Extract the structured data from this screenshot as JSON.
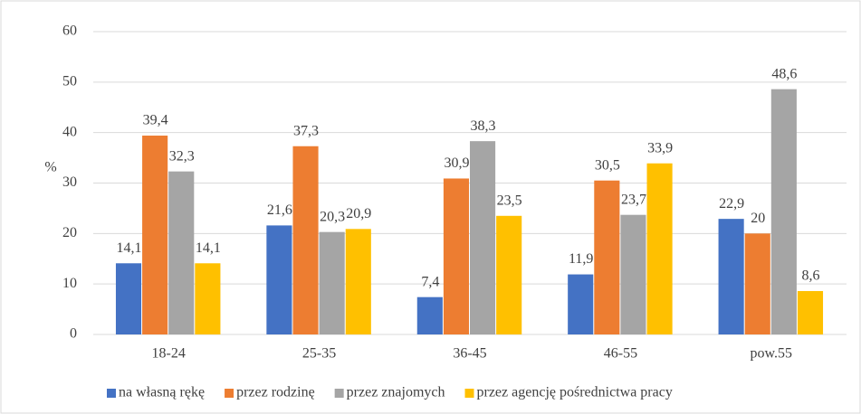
{
  "chart_data": {
    "type": "bar",
    "y_label": "%",
    "categories": [
      "18-24",
      "25-35",
      "36-45",
      "46-55",
      "pow.55"
    ],
    "series": [
      {
        "name": "na własną rękę",
        "color": "#4472c4",
        "values": [
          14.1,
          21.6,
          7.4,
          11.9,
          22.9
        ],
        "value_labels": [
          "14,1",
          "21,6",
          "7,4",
          "11,9",
          "22,9"
        ]
      },
      {
        "name": "przez rodzinę",
        "color": "#ed7d31",
        "values": [
          39.4,
          37.3,
          30.9,
          30.5,
          20
        ],
        "value_labels": [
          "39,4",
          "37,3",
          "30,9",
          "30,5",
          "20"
        ]
      },
      {
        "name": "przez znajomych",
        "color": "#a5a5a5",
        "values": [
          32.3,
          20.3,
          38.3,
          23.7,
          48.6
        ],
        "value_labels": [
          "32,3",
          "20,3",
          "38,3",
          "23,7",
          "48,6"
        ]
      },
      {
        "name": "przez agencję pośrednictwa pracy",
        "color": "#ffc000",
        "values": [
          14.1,
          20.9,
          23.5,
          33.9,
          8.6
        ],
        "value_labels": [
          "14,1",
          "20,9",
          "23,5",
          "33,9",
          "8,6"
        ]
      }
    ],
    "ylim": [
      0,
      60
    ],
    "yticks": [
      0,
      10,
      20,
      30,
      40,
      50,
      60
    ],
    "grid": true,
    "legend": "bottom"
  }
}
